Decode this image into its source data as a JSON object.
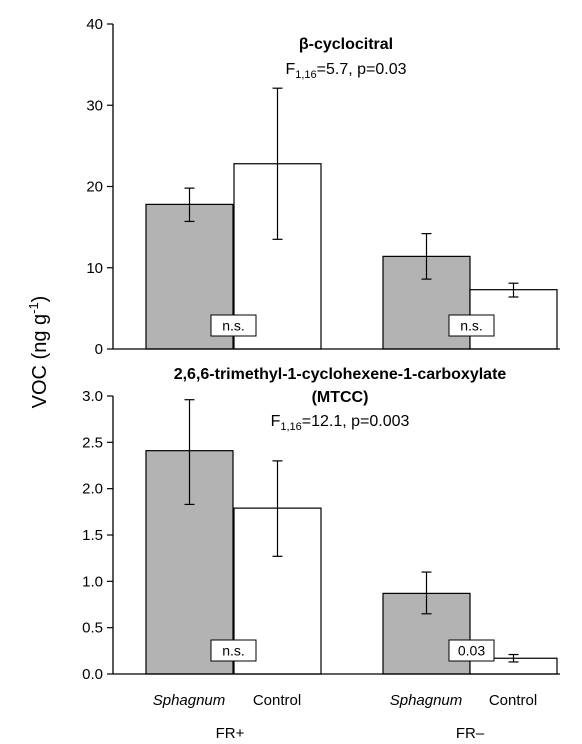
{
  "chart_data": {
    "type": "bar",
    "ylabel": "VOC (ng g",
    "ylabel_sup": "-1",
    "ylabel_close": ")",
    "x_categories": [
      "Sphagnum",
      "Control",
      "Sphagnum",
      "Control"
    ],
    "x_categories_italic": [
      true,
      false,
      true,
      false
    ],
    "groups": [
      "FR+",
      "FR–"
    ],
    "colors": {
      "Sphagnum": "#b3b3b3",
      "Control": "#ffffff"
    },
    "panels": [
      {
        "title": "β-cyclocitral",
        "stat_main": "F",
        "stat_sub": "1,16",
        "stat_rest": "=5.7, p=0.03",
        "ylim": [
          0,
          40
        ],
        "yticks": [
          "0",
          "10",
          "20",
          "30",
          "40"
        ],
        "ytick_values": [
          0,
          10,
          20,
          30,
          40
        ],
        "bars": [
          {
            "group": "FR+",
            "treatment": "Sphagnum",
            "value": 17.8,
            "err_low": 15.7,
            "err_high": 19.8
          },
          {
            "group": "FR+",
            "treatment": "Control",
            "value": 22.8,
            "err_low": 13.5,
            "err_high": 32.1
          },
          {
            "group": "FR–",
            "treatment": "Sphagnum",
            "value": 11.4,
            "err_low": 8.6,
            "err_high": 14.2
          },
          {
            "group": "FR–",
            "treatment": "Control",
            "value": 7.3,
            "err_low": 6.4,
            "err_high": 8.1
          }
        ],
        "annotations": [
          "n.s.",
          "n.s."
        ]
      },
      {
        "title_line1": "2,6,6-trimethyl-1-cyclohexene-1-carboxylate",
        "title_line2": "(MTCC)",
        "stat_main": "F",
        "stat_sub": "1,16",
        "stat_rest": "=12.1, p=0.003",
        "ylim": [
          0,
          3.0
        ],
        "yticks": [
          "0.0",
          "0.5",
          "1.0",
          "1.5",
          "2.0",
          "2.5",
          "3.0"
        ],
        "ytick_values": [
          0,
          0.5,
          1.0,
          1.5,
          2.0,
          2.5,
          3.0
        ],
        "bars": [
          {
            "group": "FR+",
            "treatment": "Sphagnum",
            "value": 2.41,
            "err_low": 1.83,
            "err_high": 2.96
          },
          {
            "group": "FR+",
            "treatment": "Control",
            "value": 1.79,
            "err_low": 1.27,
            "err_high": 2.3
          },
          {
            "group": "FR–",
            "treatment": "Sphagnum",
            "value": 0.87,
            "err_low": 0.65,
            "err_high": 1.1
          },
          {
            "group": "FR–",
            "treatment": "Control",
            "value": 0.17,
            "err_low": 0.13,
            "err_high": 0.21
          }
        ],
        "annotations": [
          "n.s.",
          "0.03"
        ]
      }
    ]
  }
}
